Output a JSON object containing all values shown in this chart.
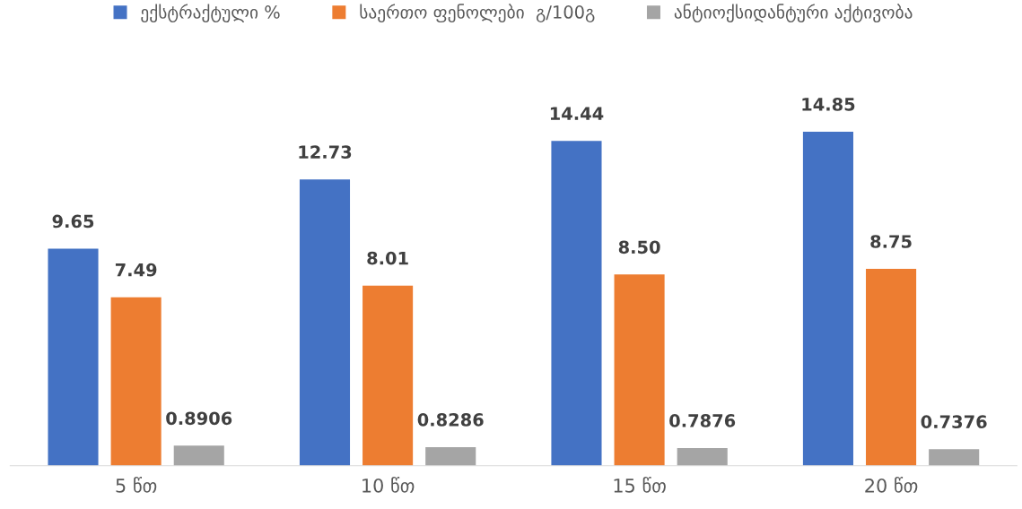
{
  "chart_data": {
    "type": "bar",
    "categories": [
      "5 წთ",
      "10 წთ",
      "15 წთ",
      "20 წთ"
    ],
    "series": [
      {
        "name": "ექსტრაქტული %",
        "color": "#4472c4",
        "values": [
          9.65,
          12.73,
          14.44,
          14.85
        ],
        "value_labels": [
          "9.65",
          "12.73",
          "14.44",
          "14.85"
        ]
      },
      {
        "name": "საერთო ფენოლები  გ/100გ",
        "color": "#ed7d31",
        "values": [
          7.49,
          8.01,
          8.5,
          8.75
        ],
        "value_labels": [
          "7.49",
          "8.01",
          "8.50",
          "8.75"
        ]
      },
      {
        "name": "ანტიოქსიდანტური აქტივობა",
        "color": "#a5a5a5",
        "values": [
          0.8906,
          0.8286,
          0.7876,
          0.7376
        ],
        "value_labels": [
          "0.8906",
          "0.8286",
          "0.7876",
          "0.7376"
        ]
      }
    ],
    "tick_labels": "x",
    "grid": false,
    "legend": "top"
  }
}
